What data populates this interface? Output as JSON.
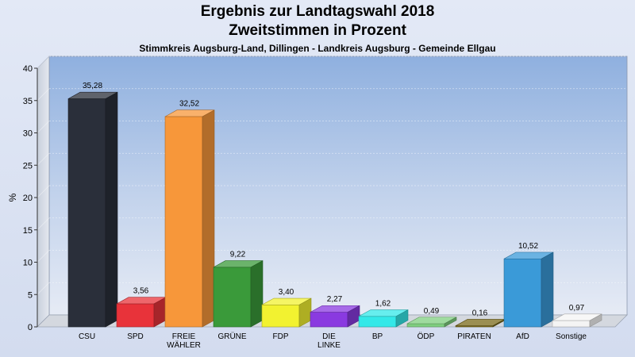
{
  "header": {
    "title": "Ergebnis zur Landtagswahl 2018",
    "subtitle": "Zweitstimmen in Prozent",
    "location": "Stimmkreis Augsburg-Land, Dillingen - Landkreis Augsburg - Gemeinde Ellgau"
  },
  "chart_data": {
    "type": "bar",
    "title": "Ergebnis zur Landtagswahl 2018",
    "subtitle": "Zweitstimmen in Prozent",
    "xlabel": "",
    "ylabel": "%",
    "ylim": [
      0,
      40
    ],
    "yticks": [
      0,
      5,
      10,
      15,
      20,
      25,
      30,
      35,
      40
    ],
    "grid": true,
    "categories": [
      "CSU",
      "SPD",
      "FREIE WÄHLER",
      "GRÜNE",
      "FDP",
      "DIE LINKE",
      "BP",
      "ÖDP",
      "PIRATEN",
      "AfD",
      "Sonstige"
    ],
    "category_lines": [
      [
        "CSU"
      ],
      [
        "SPD"
      ],
      [
        "FREIE",
        "WÄHLER"
      ],
      [
        "GRÜNE"
      ],
      [
        "FDP"
      ],
      [
        "DIE",
        "LINKE"
      ],
      [
        "BP"
      ],
      [
        "ÖDP"
      ],
      [
        "PIRATEN"
      ],
      [
        "AfD"
      ],
      [
        "Sonstige"
      ]
    ],
    "values": [
      35.28,
      3.56,
      32.52,
      9.22,
      3.4,
      2.27,
      1.62,
      0.49,
      0.16,
      10.52,
      0.97
    ],
    "value_labels": [
      "35,28",
      "3,56",
      "32,52",
      "9,22",
      "3,40",
      "2,27",
      "1,62",
      "0,49",
      "0,16",
      "10,52",
      "0,97"
    ],
    "colors": [
      "#2a2f3a",
      "#e8333a",
      "#f7973a",
      "#3a9a3a",
      "#f2f230",
      "#8a3ae0",
      "#33e8e8",
      "#7fcf7f",
      "#7a6a1a",
      "#3a9ad8",
      "#f4f4f4"
    ]
  }
}
